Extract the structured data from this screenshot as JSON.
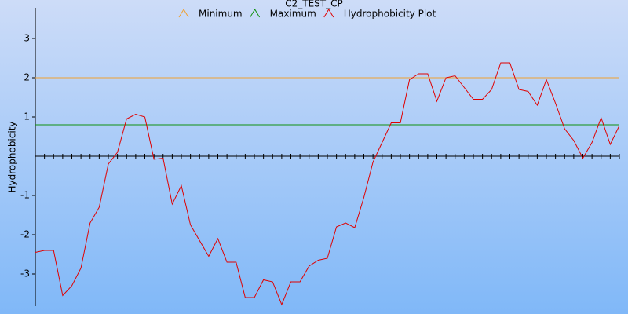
{
  "chart_data": {
    "type": "line",
    "title": "C2_TEST_CP",
    "y_label": "Hydrophobicity",
    "x": [
      1,
      2,
      3,
      4,
      5,
      6,
      7,
      8,
      9,
      10,
      11,
      12,
      13,
      14,
      15,
      16,
      17,
      18,
      19,
      20,
      21,
      22,
      23,
      24,
      25,
      26,
      27,
      28,
      29,
      30,
      31,
      32,
      33,
      34,
      35,
      36,
      37,
      38,
      39,
      40,
      41,
      42,
      43,
      44,
      45,
      46,
      47,
      48,
      49,
      50,
      51,
      52,
      53,
      54,
      55,
      56,
      57,
      58,
      59,
      60,
      61,
      62,
      63,
      64,
      65
    ],
    "xlim": [
      1,
      65
    ],
    "ylim": [
      -3.82,
      3.78
    ],
    "yticks": [
      -3,
      -2,
      -1,
      1,
      2,
      3
    ],
    "reference_lines": [
      {
        "name": "Minimum",
        "color": "#f0a030",
        "value": 2
      },
      {
        "name": "Maximum",
        "color": "#109010",
        "value": 0.8
      }
    ],
    "series": [
      {
        "name": "Hydrophobicity Plot",
        "color": "#e00000",
        "values": [
          -2.45,
          -2.4,
          -2.4,
          -3.55,
          -3.3,
          -2.85,
          -1.7,
          -1.3,
          -0.2,
          0.1,
          0.95,
          1.07,
          1.0,
          -0.08,
          -0.05,
          -1.22,
          -0.75,
          -1.75,
          -2.15,
          -2.55,
          -2.1,
          -2.7,
          -2.7,
          -3.6,
          -3.6,
          -3.15,
          -3.2,
          -3.78,
          -3.2,
          -3.2,
          -2.8,
          -2.65,
          -2.6,
          -1.8,
          -1.7,
          -1.82,
          -1.05,
          -0.15,
          0.35,
          0.85,
          0.85,
          1.95,
          2.1,
          2.1,
          1.4,
          2.0,
          2.05,
          1.75,
          1.45,
          1.45,
          1.7,
          2.38,
          2.38,
          1.7,
          1.65,
          1.3,
          1.95,
          1.35,
          0.7,
          0.4,
          -0.05,
          0.35,
          0.98,
          0.3,
          0.78
        ]
      }
    ]
  }
}
